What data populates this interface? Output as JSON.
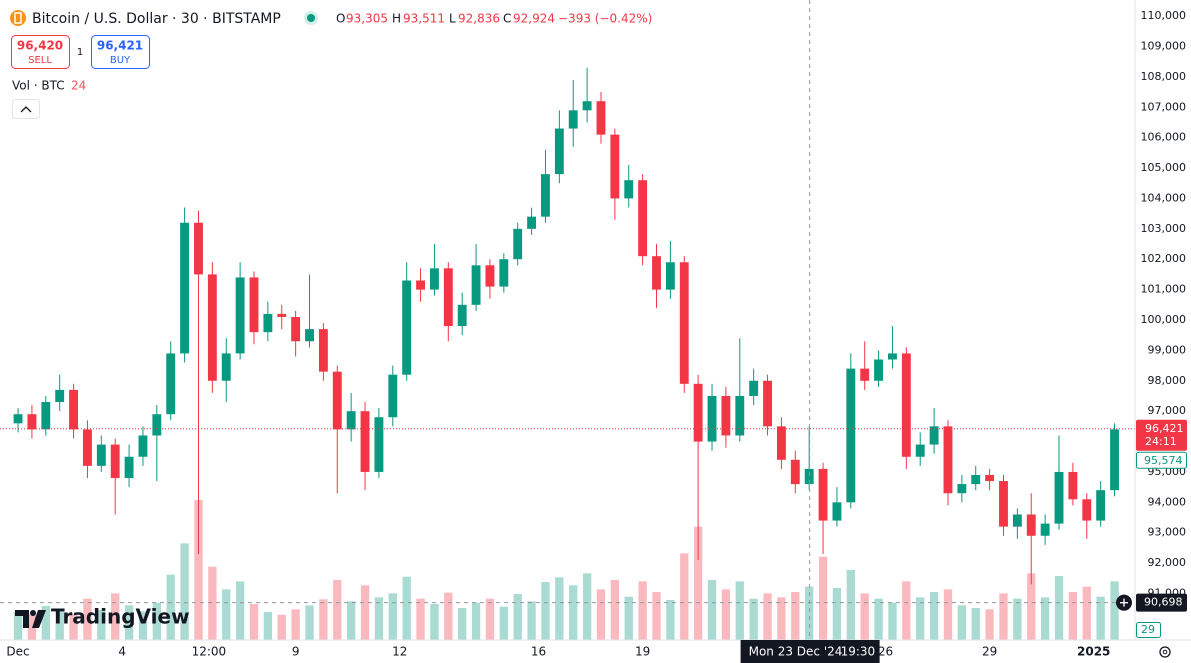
{
  "header": {
    "symbol": "Bitcoin / U.S. Dollar · 30 · BITSTAMP",
    "o_label": "O",
    "open": "93,305",
    "h_label": "H",
    "high": "93,511",
    "l_label": "L",
    "low": "92,836",
    "c_label": "C",
    "close": "92,924",
    "change": "−393 (−0.42%)",
    "sell_price": "96,420",
    "sell_label": "SELL",
    "spread": "1",
    "buy_price": "96,421",
    "buy_label": "BUY",
    "volume_label": "Vol · BTC",
    "volume_value": "24",
    "logo": "TradingView"
  },
  "chart_data": {
    "type": "candlestick",
    "up_color": "#089981",
    "down_color": "#f23645",
    "grid": false,
    "xlim": [
      -0.52,
      32.19
    ],
    "xticks": [
      {
        "value": 0,
        "label": "Dec"
      },
      {
        "value": 3,
        "label": "4"
      },
      {
        "value": 5.5,
        "label": "12:00"
      },
      {
        "value": 8,
        "label": "9"
      },
      {
        "value": 11,
        "label": "12"
      },
      {
        "value": 15,
        "label": "16"
      },
      {
        "value": 18,
        "label": "19"
      },
      {
        "value": 25,
        "label": "26"
      },
      {
        "value": 28,
        "label": "29"
      },
      {
        "value": 31,
        "label": "2025"
      }
    ],
    "ylim": [
      89470,
      110530
    ],
    "yticks": [
      {
        "value": 91000,
        "label": "91,000"
      },
      {
        "value": 92000,
        "label": "92,000"
      },
      {
        "value": 93000,
        "label": "93,000"
      },
      {
        "value": 94000,
        "label": "94,000"
      },
      {
        "value": 95000,
        "label": "95,000"
      },
      {
        "value": 96000,
        "label": "96,000"
      },
      {
        "value": 97000,
        "label": "97,000"
      },
      {
        "value": 98000,
        "label": "98,000"
      },
      {
        "value": 99000,
        "label": "99,000"
      },
      {
        "value": 100000,
        "label": "100,000"
      },
      {
        "value": 101000,
        "label": "101,000"
      },
      {
        "value": 102000,
        "label": "102,000"
      },
      {
        "value": 103000,
        "label": "103,000"
      },
      {
        "value": 104000,
        "label": "104,000"
      },
      {
        "value": 105000,
        "label": "105,000"
      },
      {
        "value": 106000,
        "label": "106,000"
      },
      {
        "value": 107000,
        "label": "107,000"
      },
      {
        "value": 108000,
        "label": "108,000"
      },
      {
        "value": 109000,
        "label": "109,000"
      },
      {
        "value": 110000,
        "label": "110,000"
      }
    ],
    "x": [
      0,
      0.4,
      0.8,
      1.2,
      1.6,
      2,
      2.4,
      2.8,
      3.2,
      3.6,
      4,
      4.4,
      4.8,
      5.2,
      5.6,
      6,
      6.4,
      6.8,
      7.2,
      7.6,
      8,
      8.4,
      8.8,
      9.2,
      9.6,
      10,
      10.4,
      10.8,
      11.2,
      11.6,
      12,
      12.4,
      12.8,
      13.2,
      13.6,
      14,
      14.4,
      14.8,
      15.2,
      15.6,
      16,
      16.4,
      16.8,
      17.2,
      17.6,
      18,
      18.4,
      18.8,
      19.2,
      19.6,
      20,
      20.4,
      20.8,
      21.2,
      21.6,
      22,
      22.4,
      22.8,
      23.2,
      23.6,
      24,
      24.4,
      24.8,
      25.2,
      25.6,
      26,
      26.4,
      26.8,
      27.2,
      27.6,
      28,
      28.4,
      28.8,
      29.2,
      29.6,
      30,
      30.4,
      30.8,
      31.2,
      31.6
    ],
    "open": [
      96600,
      96900,
      96400,
      97300,
      97700,
      96400,
      95200,
      95900,
      94800,
      95500,
      96200,
      96900,
      98900,
      103200,
      101500,
      98000,
      98900,
      101400,
      99600,
      100200,
      100100,
      99300,
      99700,
      98300,
      96400,
      97000,
      95000,
      96800,
      98200,
      101300,
      101000,
      101700,
      99800,
      100500,
      101800,
      101100,
      102000,
      103000,
      103400,
      104800,
      106300,
      106900,
      107200,
      106100,
      104000,
      104600,
      102100,
      101000,
      101900,
      97900,
      96000,
      97500,
      96200,
      97500,
      98000,
      96500,
      95400,
      94600,
      95100,
      93400,
      94000,
      98400,
      98000,
      98700,
      98900,
      95500,
      95900,
      96500,
      94300,
      94600,
      94900,
      94700,
      93200,
      93600,
      92900,
      93300,
      95000,
      94100,
      93400,
      94400
    ],
    "high": [
      97100,
      97200,
      97500,
      98200,
      97900,
      96700,
      96200,
      96100,
      95900,
      96500,
      97200,
      99300,
      103700,
      103600,
      101900,
      99400,
      101900,
      101600,
      100600,
      100500,
      100300,
      101500,
      99900,
      98500,
      97600,
      97300,
      97100,
      98500,
      101900,
      101700,
      102500,
      101900,
      100900,
      102500,
      102000,
      102200,
      103200,
      103700,
      105600,
      106900,
      107900,
      108300,
      107500,
      106300,
      105100,
      104800,
      102500,
      102600,
      102100,
      98200,
      97900,
      97800,
      99400,
      98400,
      98200,
      96800,
      95700,
      96500,
      95300,
      94500,
      98900,
      99300,
      99000,
      99800,
      99100,
      96300,
      97100,
      96700,
      94900,
      95200,
      95100,
      94900,
      93800,
      94300,
      93600,
      96200,
      95300,
      94300,
      94700,
      96600
    ],
    "low": [
      96300,
      96100,
      96200,
      97000,
      96100,
      94800,
      95000,
      93600,
      94500,
      95200,
      94700,
      96700,
      98600,
      92300,
      97600,
      97300,
      98700,
      99200,
      99300,
      99700,
      98800,
      99100,
      98000,
      94300,
      96000,
      94400,
      94800,
      96500,
      98000,
      100600,
      100800,
      99300,
      99500,
      100300,
      100700,
      100900,
      101800,
      102800,
      103200,
      104500,
      105700,
      106500,
      105800,
      103300,
      103700,
      101800,
      100400,
      100700,
      97600,
      92100,
      95700,
      95800,
      96000,
      97200,
      96200,
      95100,
      94300,
      94400,
      92300,
      93200,
      93800,
      97700,
      97800,
      98400,
      95100,
      95200,
      95600,
      93900,
      94000,
      94400,
      94400,
      92900,
      92800,
      91300,
      92600,
      93100,
      93900,
      92800,
      93200,
      94200
    ],
    "close": [
      96900,
      96400,
      97300,
      97700,
      96400,
      95200,
      95900,
      94800,
      95500,
      96200,
      96900,
      98900,
      103200,
      101500,
      98000,
      98900,
      101400,
      99600,
      100200,
      100100,
      99300,
      99700,
      98300,
      96400,
      97000,
      95000,
      96800,
      98200,
      101300,
      101000,
      101700,
      99800,
      100500,
      101800,
      101100,
      102000,
      103000,
      103400,
      104800,
      106300,
      106900,
      107200,
      106100,
      104000,
      104600,
      102100,
      101000,
      101900,
      97900,
      96000,
      97500,
      96200,
      97500,
      98000,
      96500,
      95400,
      94600,
      95100,
      93400,
      94000,
      98400,
      98000,
      98700,
      98900,
      95500,
      95900,
      96500,
      94300,
      94600,
      94900,
      94700,
      93200,
      93600,
      92900,
      93300,
      95000,
      94100,
      93400,
      94400,
      96400
    ],
    "volume": [
      420,
      380,
      510,
      460,
      390,
      620,
      450,
      700,
      520,
      430,
      560,
      980,
      1450,
      2100,
      1100,
      760,
      880,
      540,
      420,
      380,
      460,
      520,
      610,
      900,
      580,
      820,
      640,
      700,
      950,
      620,
      540,
      710,
      480,
      560,
      620,
      500,
      690,
      580,
      870,
      940,
      820,
      1000,
      760,
      900,
      650,
      880,
      720,
      600,
      1300,
      1700,
      900,
      760,
      880,
      620,
      700,
      640,
      720,
      800,
      1250,
      780,
      1050,
      700,
      620,
      560,
      880,
      640,
      720,
      760,
      520,
      480,
      460,
      700,
      620,
      1000,
      640,
      960,
      720,
      800,
      650,
      880
    ],
    "last_price": {
      "value": 96421,
      "label": "96,421"
    },
    "countdown": "24:11",
    "reference_price": {
      "value": 95574,
      "label": "95,574"
    },
    "volume_last": "29",
    "crosshair": {
      "x": 22.8125,
      "y": {
        "value": 90698,
        "label": "90,698"
      },
      "date_label": "Mon 23 Dec '24",
      "time_label": "19:30"
    }
  }
}
